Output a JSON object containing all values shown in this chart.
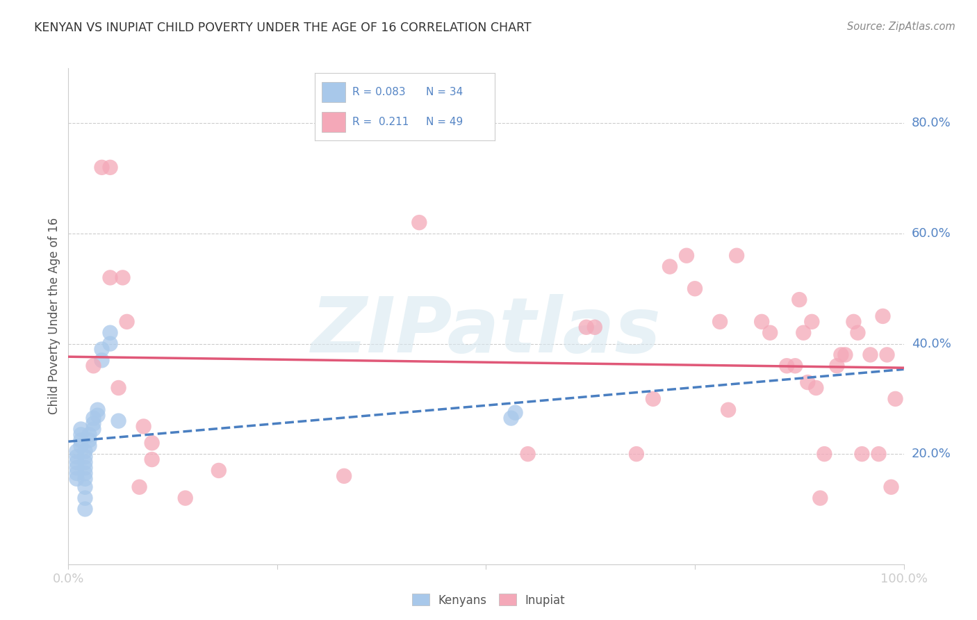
{
  "title": "KENYAN VS INUPIAT CHILD POVERTY UNDER THE AGE OF 16 CORRELATION CHART",
  "source": "Source: ZipAtlas.com",
  "ylabel": "Child Poverty Under the Age of 16",
  "kenyan_color": "#a8c8ea",
  "inupiat_color": "#f4a8b8",
  "kenyan_line_color": "#4a7fc1",
  "inupiat_line_color": "#e05878",
  "background_color": "#ffffff",
  "watermark": "ZIPatlas",
  "ytick_positions": [
    0.2,
    0.4,
    0.6,
    0.8
  ],
  "ytick_labels": [
    "20.0%",
    "40.0%",
    "60.0%",
    "80.0%"
  ],
  "kenyan_x": [
    0.01,
    0.01,
    0.01,
    0.01,
    0.01,
    0.01,
    0.015,
    0.015,
    0.015,
    0.015,
    0.02,
    0.02,
    0.02,
    0.02,
    0.02,
    0.02,
    0.02,
    0.02,
    0.02,
    0.025,
    0.025,
    0.025,
    0.03,
    0.03,
    0.03,
    0.035,
    0.035,
    0.04,
    0.04,
    0.05,
    0.05,
    0.06,
    0.53,
    0.535
  ],
  "kenyan_y": [
    0.155,
    0.165,
    0.175,
    0.185,
    0.195,
    0.205,
    0.215,
    0.225,
    0.235,
    0.245,
    0.1,
    0.12,
    0.14,
    0.155,
    0.165,
    0.175,
    0.185,
    0.195,
    0.205,
    0.215,
    0.225,
    0.235,
    0.245,
    0.255,
    0.265,
    0.27,
    0.28,
    0.37,
    0.39,
    0.4,
    0.42,
    0.26,
    0.265,
    0.275
  ],
  "inupiat_x": [
    0.03,
    0.04,
    0.05,
    0.05,
    0.06,
    0.065,
    0.07,
    0.085,
    0.09,
    0.1,
    0.1,
    0.14,
    0.18,
    0.33,
    0.42,
    0.55,
    0.62,
    0.63,
    0.68,
    0.7,
    0.72,
    0.74,
    0.75,
    0.78,
    0.79,
    0.8,
    0.83,
    0.84,
    0.86,
    0.87,
    0.875,
    0.88,
    0.885,
    0.89,
    0.895,
    0.9,
    0.905,
    0.92,
    0.925,
    0.93,
    0.94,
    0.945,
    0.95,
    0.96,
    0.97,
    0.975,
    0.98,
    0.985,
    0.99
  ],
  "inupiat_y": [
    0.36,
    0.72,
    0.52,
    0.72,
    0.32,
    0.52,
    0.44,
    0.14,
    0.25,
    0.22,
    0.19,
    0.12,
    0.17,
    0.16,
    0.62,
    0.2,
    0.43,
    0.43,
    0.2,
    0.3,
    0.54,
    0.56,
    0.5,
    0.44,
    0.28,
    0.56,
    0.44,
    0.42,
    0.36,
    0.36,
    0.48,
    0.42,
    0.33,
    0.44,
    0.32,
    0.12,
    0.2,
    0.36,
    0.38,
    0.38,
    0.44,
    0.42,
    0.2,
    0.38,
    0.2,
    0.45,
    0.38,
    0.14,
    0.3
  ]
}
